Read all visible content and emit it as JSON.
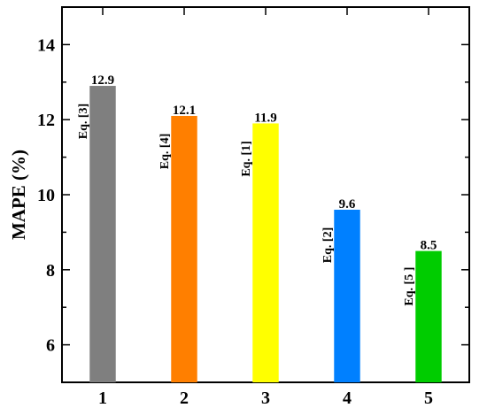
{
  "chart_data": {
    "type": "bar",
    "categories": [
      "1",
      "2",
      "3",
      "4",
      "5"
    ],
    "values": [
      12.9,
      12.1,
      11.9,
      9.6,
      8.5
    ],
    "data_labels": [
      "12.9",
      "12.1",
      "11.9",
      "9.6",
      "8.5"
    ],
    "bar_labels": [
      "Eq. [3]",
      "Eq. [4]",
      "Eq. [1]",
      "Eq. [2]",
      "Eq. [5 ]"
    ],
    "colors": [
      "#7f7f7f",
      "#ff7f00",
      "#ffff00",
      "#0080ff",
      "#00cc00"
    ],
    "title": "",
    "xlabel": "",
    "ylabel": "MAPE (%)",
    "ylim": [
      5,
      15
    ],
    "yticks": [
      6,
      8,
      10,
      12,
      14
    ],
    "xlim": [
      0.5,
      5.5
    ],
    "grid": false,
    "legend": "none"
  }
}
